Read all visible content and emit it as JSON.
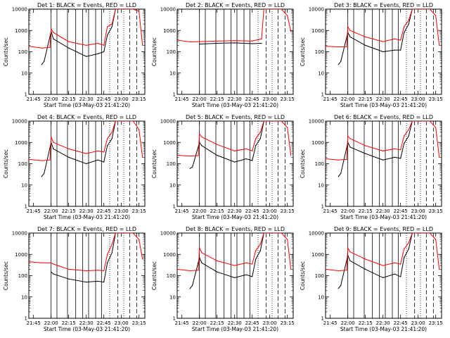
{
  "chart_data": [
    {
      "type": "line",
      "title": "Det 1: BLACK = Events, RED = LLD",
      "xlabel": "Start Time (03-May-03 21:41:20)",
      "ylabel": "Counts/sec",
      "y_scale": "log",
      "ylim": [
        1,
        10000
      ],
      "xlim": [
        "21:41",
        "23:20"
      ],
      "x_ticks": [
        "21:45",
        "22:00",
        "22:15",
        "22:30",
        "22:45",
        "23:00",
        "23:15"
      ],
      "y_ticks": [
        "1",
        "10",
        "100",
        "1000",
        "10000"
      ],
      "series": [
        {
          "color": "#000000",
          "x": [
            "21:52",
            "21:54",
            "22:00",
            "22:02",
            "22:15",
            "22:30",
            "22:40",
            "22:45",
            "22:48",
            "22:52",
            "22:55",
            "22:58"
          ],
          "values": [
            25,
            35,
            900,
            400,
            150,
            60,
            80,
            100,
            600,
            1500,
            10000,
            10000
          ]
        },
        {
          "color": "#ff0000",
          "x": [
            "21:41",
            "21:52",
            "21:59",
            "22:00",
            "22:02",
            "22:15",
            "22:30",
            "22:40",
            "22:45",
            "22:48",
            "22:52",
            "22:55",
            "23:00",
            "23:05",
            "23:10",
            "23:15",
            "23:18"
          ],
          "values": [
            180,
            150,
            160,
            1200,
            800,
            300,
            200,
            250,
            200,
            1500,
            2000,
            10000,
            10000,
            10000,
            10000,
            8000,
            200
          ]
        }
      ],
      "annotations": [
        "solid vertical lines",
        "dashed vertical lines",
        "dotted vertical lines"
      ]
    },
    {
      "type": "line",
      "title": "Det 2: BLACK = Events, RED = LLD",
      "xlabel": "Start Time (03-May-03 21:41:20)",
      "ylabel": "Counts/sec",
      "y_scale": "log",
      "ylim": [
        1,
        10000
      ],
      "xlim": [
        "21:41",
        "23:20"
      ],
      "x_ticks": [
        "21:45",
        "22:00",
        "22:15",
        "22:30",
        "22:45",
        "23:00",
        "23:15"
      ],
      "y_ticks": [
        "1",
        "10",
        "100",
        "1000",
        "10000"
      ],
      "series": [
        {
          "color": "#000000",
          "x": [
            "22:00",
            "22:15",
            "22:30",
            "22:45",
            "22:53"
          ],
          "values": [
            230,
            250,
            260,
            240,
            250
          ]
        },
        {
          "color": "#ff0000",
          "x": [
            "21:41",
            "21:52",
            "22:00",
            "22:15",
            "22:30",
            "22:45",
            "22:53",
            "22:55",
            "23:05",
            "23:10",
            "23:15",
            "23:18"
          ],
          "values": [
            350,
            290,
            300,
            320,
            330,
            320,
            400,
            10000,
            10000,
            10000,
            5000,
            900
          ]
        }
      ]
    },
    {
      "type": "line",
      "title": "Det 3: BLACK = Events, RED = LLD",
      "xlabel": "Start Time (03-May-03 21:41:20)",
      "ylabel": "Counts/sec",
      "y_scale": "log",
      "ylim": [
        1,
        10000
      ],
      "xlim": [
        "21:41",
        "23:20"
      ],
      "x_ticks": [
        "21:45",
        "22:00",
        "22:15",
        "22:30",
        "22:45",
        "23:00",
        "23:15"
      ],
      "y_ticks": [
        "1",
        "10",
        "100",
        "1000",
        "10000"
      ],
      "series": [
        {
          "color": "#000000",
          "x": [
            "21:52",
            "21:54",
            "22:00",
            "22:02",
            "22:15",
            "22:30",
            "22:40",
            "22:45",
            "22:48",
            "22:52",
            "22:55"
          ],
          "values": [
            25,
            35,
            800,
            500,
            200,
            100,
            120,
            120,
            800,
            2000,
            10000
          ]
        },
        {
          "color": "#ff0000",
          "x": [
            "21:41",
            "21:52",
            "21:59",
            "22:00",
            "22:02",
            "22:15",
            "22:30",
            "22:40",
            "22:45",
            "22:48",
            "22:52",
            "22:55",
            "23:05",
            "23:10",
            "23:15",
            "23:18"
          ],
          "values": [
            180,
            170,
            170,
            1500,
            1000,
            500,
            300,
            400,
            350,
            1500,
            3000,
            10000,
            10000,
            10000,
            5000,
            200
          ]
        }
      ]
    },
    {
      "type": "line",
      "title": "Det 4: BLACK = Events, RED = LLD",
      "xlabel": "Start Time (03-May-03 21:41:20)",
      "ylabel": "Counts/sec",
      "y_scale": "log",
      "ylim": [
        1,
        10000
      ],
      "xlim": [
        "21:41",
        "23:20"
      ],
      "x_ticks": [
        "21:45",
        "22:00",
        "22:15",
        "22:30",
        "22:45",
        "23:00",
        "23:15"
      ],
      "y_ticks": [
        "1",
        "10",
        "100",
        "1000",
        "10000"
      ],
      "series": [
        {
          "color": "#000000",
          "x": [
            "21:52",
            "21:54",
            "22:00",
            "22:02",
            "22:15",
            "22:30",
            "22:40",
            "22:45",
            "22:48",
            "22:52",
            "22:55"
          ],
          "values": [
            25,
            35,
            1000,
            500,
            200,
            100,
            150,
            120,
            700,
            1500,
            10000
          ]
        },
        {
          "color": "#ff0000",
          "x": [
            "21:41",
            "21:52",
            "21:59",
            "22:00",
            "22:02",
            "22:15",
            "22:30",
            "22:40",
            "22:45",
            "22:48",
            "22:52",
            "22:55",
            "23:05",
            "23:10",
            "23:15",
            "23:18"
          ],
          "values": [
            160,
            140,
            150,
            1800,
            1000,
            500,
            300,
            400,
            350,
            1500,
            3000,
            10000,
            10000,
            10000,
            4000,
            200
          ]
        }
      ]
    },
    {
      "type": "line",
      "title": "Det 5: BLACK = Events, RED = LLD",
      "xlabel": "Start Time (03-May-03 21:41:20)",
      "ylabel": "Counts/sec",
      "y_scale": "log",
      "ylim": [
        1,
        10000
      ],
      "xlim": [
        "21:41",
        "23:20"
      ],
      "x_ticks": [
        "21:45",
        "22:00",
        "22:15",
        "22:30",
        "22:45",
        "23:00",
        "23:15"
      ],
      "y_ticks": [
        "1",
        "10",
        "100",
        "1000",
        "10000"
      ],
      "series": [
        {
          "color": "#000000",
          "x": [
            "21:52",
            "21:54",
            "22:00",
            "22:02",
            "22:15",
            "22:30",
            "22:40",
            "22:45",
            "22:48",
            "22:52",
            "22:55"
          ],
          "values": [
            60,
            70,
            1000,
            700,
            250,
            120,
            170,
            140,
            700,
            1500,
            10000
          ]
        },
        {
          "color": "#ff0000",
          "x": [
            "21:41",
            "21:52",
            "21:59",
            "22:00",
            "22:02",
            "22:15",
            "22:30",
            "22:40",
            "22:45",
            "22:48",
            "22:52",
            "22:55",
            "23:05",
            "23:10",
            "23:15",
            "23:18"
          ],
          "values": [
            250,
            230,
            240,
            2500,
            1800,
            800,
            400,
            500,
            400,
            1500,
            3000,
            10000,
            10000,
            10000,
            5000,
            250
          ]
        }
      ]
    },
    {
      "type": "line",
      "title": "Det 6: BLACK = Events, RED = LLD",
      "xlabel": "Start Time (03-May-03 21:41:20)",
      "ylabel": "Counts/sec",
      "y_scale": "log",
      "ylim": [
        1,
        10000
      ],
      "xlim": [
        "21:41",
        "23:20"
      ],
      "x_ticks": [
        "21:45",
        "22:00",
        "22:15",
        "22:30",
        "22:45",
        "23:00",
        "23:15"
      ],
      "y_ticks": [
        "1",
        "10",
        "100",
        "1000",
        "10000"
      ],
      "series": [
        {
          "color": "#000000",
          "x": [
            "21:52",
            "21:54",
            "22:00",
            "22:02",
            "22:15",
            "22:30",
            "22:40",
            "22:45",
            "22:48",
            "22:52",
            "22:55"
          ],
          "values": [
            25,
            35,
            1000,
            600,
            300,
            150,
            200,
            180,
            900,
            2000,
            10000
          ]
        },
        {
          "color": "#ff0000",
          "x": [
            "21:41",
            "21:52",
            "21:59",
            "22:00",
            "22:02",
            "22:15",
            "22:30",
            "22:40",
            "22:45",
            "22:48",
            "22:52",
            "22:55",
            "23:05",
            "23:10",
            "23:15",
            "23:18"
          ],
          "values": [
            170,
            150,
            160,
            2000,
            1500,
            700,
            400,
            500,
            450,
            2000,
            4000,
            10000,
            10000,
            10000,
            5000,
            200
          ]
        }
      ]
    },
    {
      "type": "line",
      "title": "Det 7: BLACK = Events, RED = LLD",
      "xlabel": "Start Time (03-May-03 21:41:20)",
      "ylabel": "Counts/sec",
      "y_scale": "log",
      "ylim": [
        1,
        10000
      ],
      "xlim": [
        "21:41",
        "23:20"
      ],
      "x_ticks": [
        "21:45",
        "22:00",
        "22:15",
        "22:30",
        "22:45",
        "23:00",
        "23:15"
      ],
      "y_ticks": [
        "1",
        "10",
        "100",
        "1000",
        "10000"
      ],
      "series": [
        {
          "color": "#000000",
          "x": [
            "22:00",
            "22:02",
            "22:15",
            "22:30",
            "22:40",
            "22:45",
            "22:48",
            "22:52",
            "22:55"
          ],
          "values": [
            150,
            120,
            70,
            50,
            55,
            50,
            400,
            1200,
            10000
          ]
        },
        {
          "color": "#ff0000",
          "x": [
            "21:41",
            "21:52",
            "21:59",
            "22:00",
            "22:02",
            "22:15",
            "22:30",
            "22:40",
            "22:45",
            "22:48",
            "22:52",
            "22:55",
            "23:05",
            "23:10",
            "23:15",
            "23:18"
          ],
          "values": [
            450,
            400,
            400,
            400,
            350,
            200,
            170,
            180,
            170,
            1000,
            3000,
            10000,
            10000,
            10000,
            5000,
            600
          ]
        }
      ]
    },
    {
      "type": "line",
      "title": "Det 8: BLACK = Events, RED = LLD",
      "xlabel": "Start Time (03-May-03 21:41:20)",
      "ylabel": "Counts/sec",
      "y_scale": "log",
      "ylim": [
        1,
        10000
      ],
      "xlim": [
        "21:41",
        "23:20"
      ],
      "x_ticks": [
        "21:45",
        "22:00",
        "22:15",
        "22:30",
        "22:45",
        "23:00",
        "23:15"
      ],
      "y_ticks": [
        "1",
        "10",
        "100",
        "1000",
        "10000"
      ],
      "series": [
        {
          "color": "#000000",
          "x": [
            "21:52",
            "21:54",
            "22:00",
            "22:02",
            "22:15",
            "22:30",
            "22:40",
            "22:45",
            "22:48",
            "22:52",
            "22:55"
          ],
          "values": [
            25,
            35,
            700,
            400,
            150,
            80,
            110,
            90,
            600,
            1500,
            10000
          ]
        },
        {
          "color": "#ff0000",
          "x": [
            "21:41",
            "21:52",
            "21:59",
            "22:00",
            "22:02",
            "22:15",
            "22:30",
            "22:40",
            "22:45",
            "22:48",
            "22:52",
            "22:55",
            "23:05",
            "23:10",
            "23:15",
            "23:18"
          ],
          "values": [
            200,
            170,
            180,
            2000,
            1200,
            500,
            300,
            400,
            350,
            1500,
            3000,
            10000,
            10000,
            10000,
            5000,
            200
          ]
        }
      ]
    },
    {
      "type": "line",
      "title": "Det 9: BLACK = Events, RED = LLD",
      "xlabel": "Start Time (03-May-03 21:41:20)",
      "ylabel": "Counts/sec",
      "y_scale": "log",
      "ylim": [
        1,
        10000
      ],
      "xlim": [
        "21:41",
        "23:20"
      ],
      "x_ticks": [
        "21:45",
        "22:00",
        "22:15",
        "22:30",
        "22:45",
        "23:00",
        "23:15"
      ],
      "y_ticks": [
        "1",
        "10",
        "100",
        "1000",
        "10000"
      ],
      "series": [
        {
          "color": "#000000",
          "x": [
            "21:52",
            "21:54",
            "22:00",
            "22:02",
            "22:15",
            "22:30",
            "22:40",
            "22:45",
            "22:48",
            "22:52",
            "22:55"
          ],
          "values": [
            25,
            35,
            900,
            500,
            200,
            80,
            120,
            90,
            700,
            1800,
            10000
          ]
        },
        {
          "color": "#ff0000",
          "x": [
            "21:41",
            "21:52",
            "21:59",
            "22:00",
            "22:02",
            "22:15",
            "22:30",
            "22:40",
            "22:45",
            "22:48",
            "22:52",
            "22:55",
            "23:05",
            "23:10",
            "23:15",
            "23:18"
          ],
          "values": [
            200,
            170,
            180,
            2000,
            1300,
            600,
            300,
            400,
            350,
            1800,
            3500,
            10000,
            10000,
            10000,
            5000,
            200
          ]
        }
      ]
    }
  ]
}
